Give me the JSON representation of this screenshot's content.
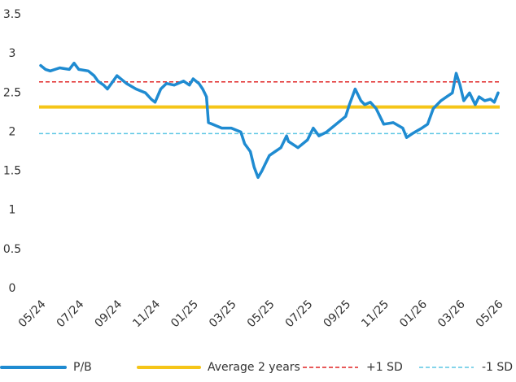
{
  "chart_data": {
    "type": "line",
    "x": [
      0,
      0.25,
      0.5,
      1,
      1.5,
      1.75,
      2,
      2.5,
      2.8,
      3,
      3.3,
      3.5,
      3.8,
      4,
      4.5,
      5,
      5.5,
      5.8,
      6,
      6.3,
      6.6,
      7,
      7.5,
      7.8,
      8,
      8.3,
      8.5,
      8.7,
      8.8,
      9,
      9.5,
      10,
      10.3,
      10.5,
      10.7,
      11,
      11.2,
      11.4,
      11.6,
      11.8,
      12,
      12.3,
      12.6,
      12.9,
      13,
      13.5,
      14,
      14.3,
      14.6,
      15,
      15.5,
      16,
      16.2,
      16.5,
      16.8,
      17,
      17.3,
      17.6,
      18,
      18.5,
      19,
      19.2,
      19.5,
      20,
      20.3,
      20.6,
      21,
      21.3,
      21.6,
      21.8,
      22,
      22.2,
      22.5,
      22.8,
      23,
      23.3,
      23.6,
      23.8,
      24
    ],
    "series": [
      {
        "name": "P/B",
        "color": "#1f8bd1",
        "values": [
          2.85,
          2.8,
          2.78,
          2.82,
          2.8,
          2.88,
          2.8,
          2.78,
          2.72,
          2.65,
          2.6,
          2.55,
          2.65,
          2.72,
          2.62,
          2.55,
          2.5,
          2.42,
          2.38,
          2.55,
          2.62,
          2.6,
          2.65,
          2.6,
          2.68,
          2.62,
          2.55,
          2.45,
          2.12,
          2.1,
          2.05,
          2.05,
          2.02,
          2.0,
          1.85,
          1.75,
          1.55,
          1.42,
          1.5,
          1.6,
          1.7,
          1.75,
          1.8,
          1.95,
          1.88,
          1.8,
          1.9,
          2.05,
          1.95,
          2.0,
          2.1,
          2.2,
          2.35,
          2.55,
          2.4,
          2.35,
          2.38,
          2.3,
          2.1,
          2.12,
          2.05,
          1.93,
          1.98,
          2.05,
          2.1,
          2.3,
          2.4,
          2.45,
          2.5,
          2.75,
          2.6,
          2.4,
          2.5,
          2.35,
          2.45,
          2.4,
          2.42,
          2.38,
          2.5
        ]
      }
    ],
    "reference_lines": [
      {
        "name": "Average 2 years",
        "value": 2.32,
        "color": "#f5c518",
        "style": "solid"
      },
      {
        "name": "+1 SD",
        "value": 2.64,
        "color": "#e02424",
        "style": "dashed"
      },
      {
        "name": "-1 SD",
        "value": 1.98,
        "color": "#5cc6e4",
        "style": "dashed"
      }
    ],
    "xlim": [
      0,
      24
    ],
    "xticks": [
      {
        "value": 0,
        "label": "05/24"
      },
      {
        "value": 2,
        "label": "07/24"
      },
      {
        "value": 4,
        "label": "09/24"
      },
      {
        "value": 6,
        "label": "11/24"
      },
      {
        "value": 8,
        "label": "01/25"
      },
      {
        "value": 10,
        "label": "03/25"
      },
      {
        "value": 12,
        "label": "05/25"
      },
      {
        "value": 14,
        "label": "07/25"
      },
      {
        "value": 16,
        "label": "09/25"
      },
      {
        "value": 18,
        "label": "11/25"
      },
      {
        "value": 20,
        "label": "01/26"
      },
      {
        "value": 22,
        "label": "03/26"
      },
      {
        "value": 24,
        "label": "05/26"
      }
    ],
    "ylim": [
      0,
      3.5
    ],
    "yticks": [
      0,
      0.5,
      1,
      1.5,
      2,
      2.5,
      3,
      3.5
    ],
    "grid": false,
    "legend": "bottom"
  }
}
